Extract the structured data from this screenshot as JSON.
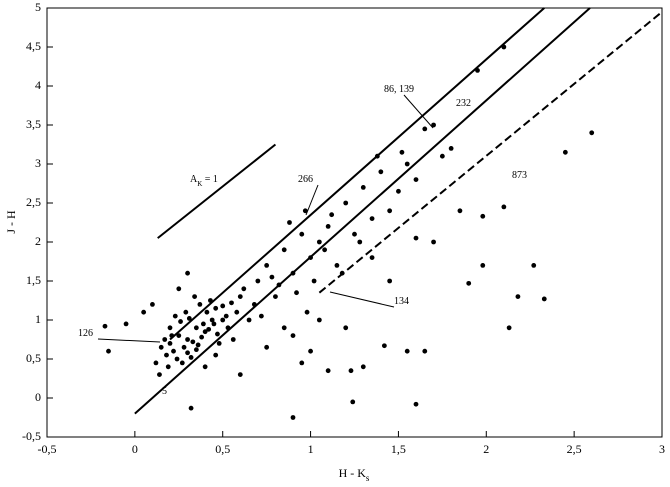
{
  "chart_data": {
    "type": "scatter",
    "xlabel": {
      "text": "H - K",
      "sub": "s"
    },
    "ylabel": "J - H",
    "xlim": [
      -0.5,
      3
    ],
    "ylim": [
      -0.5,
      5
    ],
    "xticks": [
      {
        "value": -0.5,
        "label": "-0,5"
      },
      0,
      {
        "value": 0.5,
        "label": "0,5"
      },
      1,
      {
        "value": 1.5,
        "label": "1,5"
      },
      2,
      {
        "value": 2.5,
        "label": "2,5"
      },
      3
    ],
    "yticks": [
      {
        "value": -0.5,
        "label": "-0,5"
      },
      0,
      {
        "value": 0.5,
        "label": "0,5"
      },
      1,
      {
        "value": 1.5,
        "label": "1,5"
      },
      2,
      {
        "value": 2.5,
        "label": "2,5"
      },
      3,
      {
        "value": 3.5,
        "label": "3,5"
      },
      4,
      {
        "value": 4.5,
        "label": "4,5"
      },
      5
    ],
    "color": "#000000",
    "x": [
      0.2,
      0.25,
      0.3,
      0.35,
      0.4,
      0.45,
      0.5,
      0.22,
      0.28,
      0.33,
      0.38,
      0.42,
      0.47,
      0.52,
      0.18,
      0.24,
      0.3,
      0.36,
      0.41,
      0.46,
      0.15,
      0.2,
      0.26,
      0.31,
      0.37,
      0.43,
      0.48,
      0.53,
      0.58,
      0.6,
      0.27,
      0.32,
      0.35,
      0.39,
      0.44,
      0.5,
      0.55,
      0.21,
      0.17,
      0.29,
      0.12,
      0.14,
      0.19,
      0.23,
      0.34,
      0.4,
      0.46,
      0.56,
      0.62,
      0.65,
      0.7,
      0.75,
      0.8,
      0.85,
      0.9,
      0.95,
      1.0,
      1.05,
      1.1,
      1.15,
      0.68,
      0.72,
      0.78,
      0.82,
      0.88,
      0.92,
      0.97,
      1.02,
      1.08,
      1.12,
      1.2,
      1.25,
      1.3,
      1.35,
      1.4,
      1.45,
      1.5,
      1.55,
      1.6,
      1.65,
      1.7,
      1.75,
      1.8,
      1.52,
      1.38,
      1.28,
      1.18,
      0.98,
      0.9,
      0.6,
      2.6,
      2.45,
      2.1,
      1.95,
      2.1,
      2.27,
      2.18,
      2.33,
      2.13,
      1.98,
      1.9,
      1.85,
      1.98,
      1.6,
      1.24,
      0.9,
      0.32,
      1.42,
      1.55,
      1.65,
      1.3,
      1.1,
      1.23,
      -0.17,
      -0.05,
      -0.15,
      0.05,
      0.1,
      1.0,
      1.2,
      0.85,
      0.95,
      1.05,
      0.75,
      1.45,
      1.35,
      1.6,
      1.7,
      0.25,
      0.3
    ],
    "y": [
      0.7,
      0.8,
      0.75,
      0.9,
      0.85,
      0.95,
      1.0,
      0.6,
      0.65,
      0.72,
      0.78,
      0.88,
      0.82,
      1.05,
      0.55,
      0.5,
      0.58,
      0.68,
      1.1,
      1.15,
      0.65,
      0.9,
      0.98,
      1.02,
      1.2,
      1.25,
      0.7,
      0.9,
      1.1,
      1.3,
      0.45,
      0.52,
      0.62,
      0.95,
      1.0,
      1.18,
      1.22,
      0.8,
      0.75,
      1.1,
      0.45,
      0.3,
      0.4,
      1.05,
      1.3,
      0.4,
      0.55,
      0.75,
      1.4,
      1.0,
      1.5,
      1.7,
      1.3,
      1.9,
      1.6,
      2.1,
      1.8,
      2.0,
      2.2,
      1.7,
      1.2,
      1.05,
      1.55,
      1.45,
      2.25,
      1.35,
      2.4,
      1.5,
      1.9,
      2.35,
      2.5,
      2.1,
      2.7,
      2.3,
      2.9,
      2.4,
      2.65,
      3.0,
      2.8,
      3.45,
      3.5,
      3.1,
      3.2,
      3.15,
      3.1,
      2.0,
      1.6,
      1.1,
      0.8,
      0.3,
      3.4,
      3.15,
      4.5,
      4.2,
      2.45,
      1.7,
      1.3,
      1.27,
      0.9,
      1.7,
      1.47,
      2.4,
      2.33,
      -0.08,
      -0.05,
      -0.25,
      -0.13,
      0.67,
      0.6,
      0.6,
      0.4,
      0.35,
      0.35,
      0.92,
      0.95,
      0.6,
      1.1,
      1.2,
      0.6,
      0.9,
      0.9,
      0.45,
      1.0,
      0.65,
      1.5,
      1.8,
      2.05,
      2.0,
      1.4,
      1.6
    ],
    "lines": [
      {
        "x": [
          0,
          2.59
        ],
        "y": [
          -0.2,
          5
        ],
        "style": "solid"
      },
      {
        "x": [
          0.2,
          2.33
        ],
        "y": [
          0.75,
          5
        ],
        "style": "solid"
      },
      {
        "x": [
          1.05,
          3
        ],
        "y": [
          1.35,
          4.95
        ],
        "style": "dashed"
      },
      {
        "x": [
          0.13,
          0.8
        ],
        "y": [
          2.05,
          3.25
        ],
        "style": "solid"
      }
    ],
    "annotations": [
      {
        "text": "A",
        "sub": "K",
        "suffix": " = 1"
      },
      {
        "text": "86, 139"
      },
      {
        "text": "232"
      },
      {
        "text": "266"
      },
      {
        "text": "134"
      },
      {
        "text": "873"
      },
      {
        "text": "126"
      },
      {
        "text": "5"
      }
    ]
  }
}
